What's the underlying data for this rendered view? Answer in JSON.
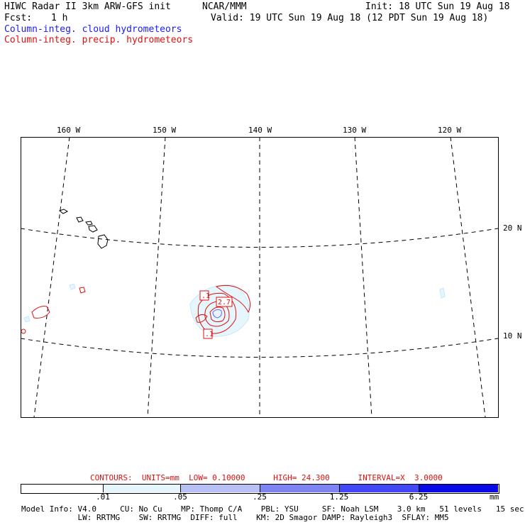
{
  "header": {
    "title": "HIWC Radar II 3km ARW-GFS init",
    "org": "NCAR/MMM",
    "init": "Init: 18 UTC Sun 19 Aug 18",
    "fcst_label": "Fcst:",
    "fcst_value": "1 h",
    "valid": "Valid: 19 UTC Sun 19 Aug 18 (12 PDT Sun 19 Aug 18)",
    "field_cloud": "Column-integ. cloud hydrometeors",
    "field_precip": "Column-integ. precip. hydrometeors"
  },
  "map": {
    "lon_labels": [
      "160 W",
      "150 W",
      "140 W",
      "130 W",
      "120 W"
    ],
    "lat_labels": [
      "20 N",
      "10 N"
    ],
    "contour_labels": [
      ".1",
      "2.7",
      ".1"
    ],
    "colors": {
      "cloud": "#1a1aff",
      "precip": "#e01010",
      "grid": "#000000"
    }
  },
  "colorbar": {
    "contours_line": "CONTOURS:  UNITS=mm  LOW= 0.10000      HIGH= 24.300      INTERVAL=X  3.0000",
    "tick_labels": [
      ".01",
      ".05",
      ".25",
      "1.25",
      "6.25"
    ],
    "unit": "mm",
    "colors": [
      "#ffffff",
      "#e6f6fd",
      "#b8c0f5",
      "#7e84f3",
      "#4248f5",
      "#0a0ae6"
    ]
  },
  "footer": {
    "line1": "Model Info: V4.0     CU: No Cu    MP: Thomp C/A    PBL: YSU     SF: Noah LSM    3.0 km   51 levels   15 sec",
    "line2": "            LW: RRTMG    SW: RRTMG  DIFF: full    KM: 2D Smagor DAMP: Rayleigh3  SFLAY: MM5"
  }
}
